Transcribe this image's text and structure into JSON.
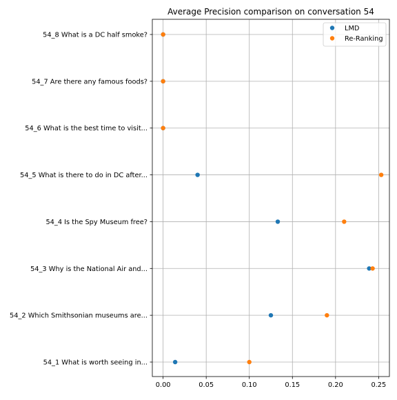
{
  "chart_data": {
    "type": "scatter",
    "title": "Average Precision comparison on conversation 54",
    "xlabel": "",
    "ylabel": "",
    "xlim": [
      -0.0125,
      0.2625
    ],
    "x_ticks": [
      0.0,
      0.05,
      0.1,
      0.15,
      0.2,
      0.25
    ],
    "x_tick_labels": [
      "0.00",
      "0.05",
      "0.10",
      "0.15",
      "0.20",
      "0.25"
    ],
    "categories": [
      "54_8 What is a DC half smoke?",
      "54_7 Are there any famous foods?",
      "54_6 What is the best time to visit...",
      "54_5 What is there to do in DC after...",
      "54_4 Is the Spy Museum free?",
      "54_3 Why is the National Air and...",
      "54_2 Which Smithsonian museums are...",
      "54_1 What is worth seeing in..."
    ],
    "series": [
      {
        "name": "LMD",
        "color": "#1f77b4",
        "values": [
          0.0,
          0.0,
          0.0,
          0.04,
          0.133,
          0.239,
          0.125,
          0.014
        ]
      },
      {
        "name": "Re-Ranking",
        "color": "#ff7f0e",
        "values": [
          0.0,
          0.0,
          0.0,
          0.253,
          0.21,
          0.243,
          0.19,
          0.1
        ]
      }
    ],
    "grid": true,
    "legend_position": "top-right"
  }
}
